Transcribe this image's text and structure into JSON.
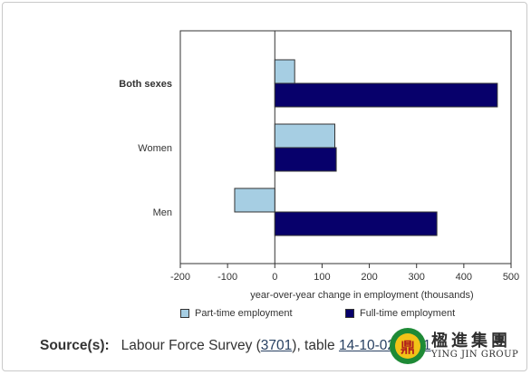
{
  "chart_data": {
    "type": "bar",
    "orientation": "horizontal",
    "categories": [
      "Both sexes",
      "Women",
      "Men"
    ],
    "category_emphasis": [
      true,
      false,
      false
    ],
    "series": [
      {
        "name": "Part-time employment",
        "color": "#a6cee3",
        "values": [
          42,
          127,
          -85
        ]
      },
      {
        "name": "Full-time employment",
        "color": "#07006b",
        "values": [
          471,
          130,
          343
        ]
      }
    ],
    "xlabel": "year-over-year change in employment (thousands)",
    "xlim": [
      -200,
      500
    ],
    "xticks": [
      -200,
      -100,
      0,
      100,
      200,
      300,
      400,
      500
    ],
    "grid": false,
    "legend_position": "bottom"
  },
  "source": {
    "label": "Source(s):",
    "text_before": "Labour Force Survey (",
    "link1": "3701",
    "text_middle": "), table ",
    "link2": "14-10-0287-01"
  },
  "watermark": {
    "logo_glyph": "鼎",
    "chinese": "楹進集團",
    "english": "YING JIN GROUP"
  }
}
